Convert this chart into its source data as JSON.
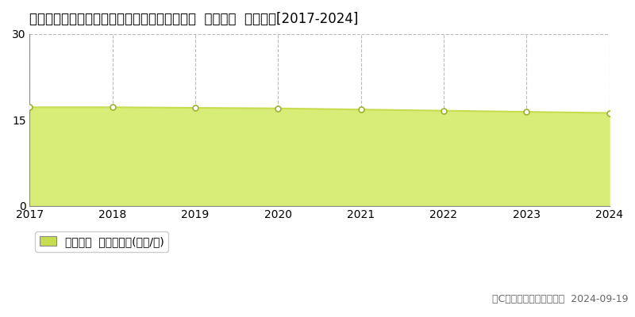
{
  "title": "静岡県静岡市清水区草ヶ谷字足高２９９番７外  基準地価  地価推移[2017-2024]",
  "years": [
    2017,
    2018,
    2019,
    2020,
    2021,
    2022,
    2023,
    2024
  ],
  "values": [
    17.2,
    17.2,
    17.1,
    17.0,
    16.8,
    16.6,
    16.4,
    16.2
  ],
  "ylim": [
    0,
    30
  ],
  "yticks": [
    0,
    15,
    30
  ],
  "line_color": "#c8dc50",
  "fill_color": "#d8ec78",
  "marker_color": "#ffffff",
  "marker_edge_color": "#a0b030",
  "bg_color": "#ffffff",
  "grid_color": "#bbbbbb",
  "legend_label": "基準地価  平均坪単価(万円/坪)",
  "legend_color": "#c8dc50",
  "copyright_text": "（C）土地価格ドットコム  2024-09-19",
  "title_fontsize": 12,
  "axis_fontsize": 10,
  "legend_fontsize": 10,
  "copyright_fontsize": 9
}
